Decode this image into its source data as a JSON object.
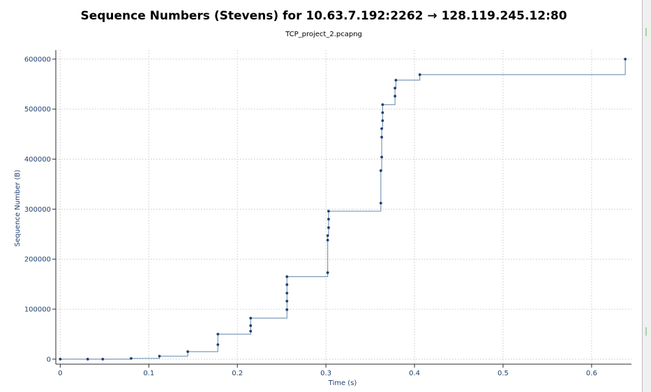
{
  "chart_data": {
    "type": "line",
    "title": "Sequence Numbers (Stevens) for 10.63.7.192:2262 → 128.119.245.12:80",
    "subtitle": "TCP_project_2.pcapng",
    "xlabel": "Time (s)",
    "ylabel": "Sequence Number (B)",
    "xlim": [
      -0.005,
      0.645
    ],
    "ylim": [
      -10000,
      618000
    ],
    "xticks": [
      0,
      0.1,
      0.2,
      0.3,
      0.4,
      0.5,
      0.6
    ],
    "xtick_labels": [
      "0",
      "0.1",
      "0.2",
      "0.3",
      "0.4",
      "0.5",
      "0.6"
    ],
    "yticks": [
      0,
      100000,
      200000,
      300000,
      400000,
      500000,
      600000
    ],
    "ytick_labels": [
      "0",
      "100000",
      "200000",
      "300000",
      "400000",
      "500000",
      "600000"
    ],
    "grid": true,
    "line_style": "step",
    "series": [
      {
        "x": [
          0.0,
          0.031,
          0.048,
          0.08,
          0.112,
          0.144,
          0.178,
          0.178,
          0.215,
          0.215,
          0.215,
          0.256,
          0.256,
          0.256,
          0.256,
          0.256,
          0.302,
          0.302,
          0.302,
          0.303,
          0.303,
          0.303,
          0.362,
          0.362,
          0.363,
          0.363,
          0.363,
          0.364,
          0.364,
          0.364,
          0.378,
          0.378,
          0.379,
          0.406,
          0.638
        ],
        "y": [
          0,
          0,
          0,
          1500,
          6000,
          15000,
          29000,
          50000,
          56000,
          67000,
          82000,
          99000,
          116000,
          132000,
          149000,
          165000,
          173000,
          238000,
          247000,
          263000,
          280000,
          296000,
          312000,
          377000,
          404000,
          444000,
          461000,
          477000,
          493000,
          509000,
          526000,
          542000,
          558000,
          569000,
          600000
        ]
      }
    ]
  },
  "colors": {
    "series": "#6f8fb0",
    "points": "#1f3f6e",
    "tick_text": "#1f3f6e",
    "grid": "#c8c8c8"
  }
}
